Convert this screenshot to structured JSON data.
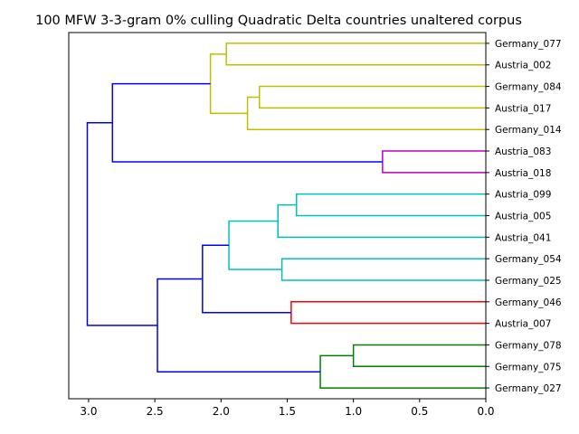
{
  "chart_data": {
    "type": "dendrogram",
    "title": "100 MFW 3-3-gram 0% culling Quadratic Delta countries unaltered corpus",
    "orientation": "left",
    "xlim": [
      3.15,
      0.0
    ],
    "xticks": [
      3.0,
      2.5,
      2.0,
      1.5,
      1.0,
      0.5,
      0.0
    ],
    "xtick_labels": [
      "3.0",
      "2.5",
      "2.0",
      "1.5",
      "1.0",
      "0.5",
      "0.0"
    ],
    "leaves": [
      "Germany_077",
      "Austria_002",
      "Germany_084",
      "Austria_017",
      "Germany_014",
      "Austria_083",
      "Austria_018",
      "Austria_099",
      "Austria_005",
      "Austria_041",
      "Germany_054",
      "Germany_025",
      "Germany_046",
      "Austria_007",
      "Germany_078",
      "Germany_075",
      "Germany_027"
    ],
    "colors": {
      "yellow": "#bfbf00",
      "magenta": "#bf00bf",
      "cyan": "#00bfbf",
      "red": "#ff0000",
      "green": "#008000",
      "blue": "#0000ff"
    },
    "merges": [
      {
        "id": "c1",
        "a": "Germany_077",
        "b": "Austria_002",
        "height": 1.96,
        "color": "yellow"
      },
      {
        "id": "c2",
        "a": "Germany_084",
        "b": "Austria_017",
        "height": 1.71,
        "color": "yellow"
      },
      {
        "id": "c3",
        "a": "c2",
        "b": "Germany_014",
        "height": 1.8,
        "color": "yellow"
      },
      {
        "id": "c4",
        "a": "c1",
        "b": "c3",
        "height": 2.08,
        "color": "yellow"
      },
      {
        "id": "c5",
        "a": "Austria_083",
        "b": "Austria_018",
        "height": 0.78,
        "color": "magenta"
      },
      {
        "id": "c6",
        "a": "c4",
        "b": "c5",
        "height": 2.82,
        "color": "blue"
      },
      {
        "id": "c7",
        "a": "Austria_099",
        "b": "Austria_005",
        "height": 1.43,
        "color": "cyan"
      },
      {
        "id": "c8",
        "a": "c7",
        "b": "Austria_041",
        "height": 1.57,
        "color": "cyan"
      },
      {
        "id": "c9",
        "a": "Germany_054",
        "b": "Germany_025",
        "height": 1.54,
        "color": "cyan"
      },
      {
        "id": "c10",
        "a": "c8",
        "b": "c9",
        "height": 1.94,
        "color": "cyan"
      },
      {
        "id": "c11",
        "a": "Germany_046",
        "b": "Austria_007",
        "height": 1.47,
        "color": "red"
      },
      {
        "id": "c12",
        "a": "c10",
        "b": "c11",
        "height": 2.14,
        "color": "blue"
      },
      {
        "id": "c13",
        "a": "Germany_078",
        "b": "Germany_075",
        "height": 1.0,
        "color": "green"
      },
      {
        "id": "c14",
        "a": "c13",
        "b": "Germany_027",
        "height": 1.25,
        "color": "green"
      },
      {
        "id": "c15",
        "a": "c12",
        "b": "c14",
        "height": 2.48,
        "color": "blue"
      },
      {
        "id": "c16",
        "a": "c6",
        "b": "c15",
        "height": 3.01,
        "color": "blue"
      }
    ]
  }
}
